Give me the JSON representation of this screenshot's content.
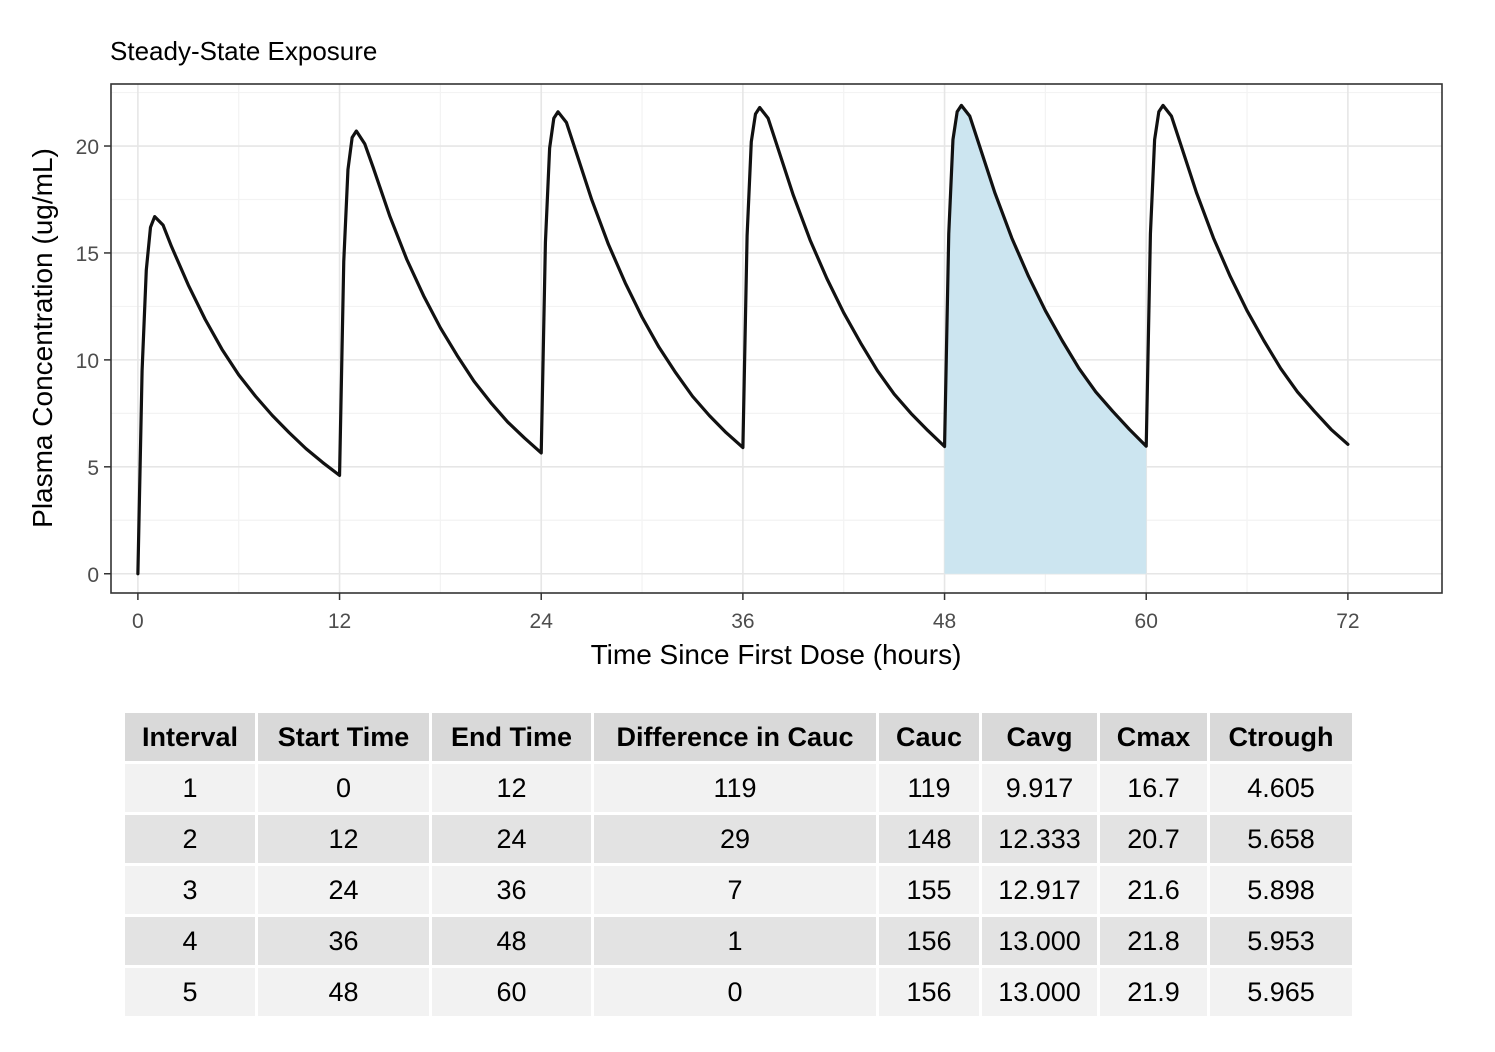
{
  "chart_data": {
    "type": "line",
    "title": "Steady-State Exposure",
    "xlabel": "Time Since First Dose (hours)",
    "ylabel": "Plasma Concentration (ug/mL)",
    "xlim": [
      -1.6,
      77.6
    ],
    "ylim": [
      -0.9,
      22.9
    ],
    "x_ticks": [
      0,
      12,
      24,
      36,
      48,
      60,
      72
    ],
    "y_ticks": [
      0,
      5,
      10,
      15,
      20
    ],
    "grid": true,
    "line_color": "#111111",
    "shaded_interval": {
      "x_start": 48,
      "x_end": 60,
      "color": "#cce5f0"
    },
    "series": [
      {
        "x": [
          0,
          0.25,
          0.5,
          0.75,
          1,
          1.5,
          2,
          3,
          4,
          5,
          6,
          7,
          8,
          9,
          10,
          11,
          12,
          12.25,
          12.5,
          12.75,
          13,
          13.5,
          14,
          15,
          16,
          17,
          18,
          19,
          20,
          21,
          22,
          23,
          24,
          24.25,
          24.5,
          24.75,
          25,
          25.5,
          26,
          27,
          28,
          29,
          30,
          31,
          32,
          33,
          34,
          35,
          36,
          36.25,
          36.5,
          36.75,
          37,
          37.5,
          38,
          39,
          40,
          41,
          42,
          43,
          44,
          45,
          46,
          47,
          48,
          48.25,
          48.5,
          48.75,
          49,
          49.5,
          50,
          51,
          52,
          53,
          54,
          55,
          56,
          57,
          58,
          59,
          60,
          60.25,
          60.5,
          60.75,
          61,
          61.5,
          62,
          63,
          64,
          65,
          66,
          67,
          68,
          69,
          70,
          71,
          72
        ],
        "y": [
          0,
          9.5,
          14.2,
          16.2,
          16.7,
          16.3,
          15.3,
          13.5,
          11.9,
          10.5,
          9.3,
          8.3,
          7.4,
          6.6,
          5.85,
          5.2,
          4.6,
          14.6,
          18.9,
          20.4,
          20.7,
          20.1,
          19.0,
          16.7,
          14.7,
          13.0,
          11.5,
          10.2,
          9.0,
          8.0,
          7.1,
          6.35,
          5.65,
          15.5,
          19.9,
          21.3,
          21.6,
          21.1,
          19.9,
          17.5,
          15.4,
          13.6,
          12.0,
          10.6,
          9.4,
          8.3,
          7.4,
          6.6,
          5.9,
          15.8,
          20.2,
          21.5,
          21.8,
          21.3,
          20.1,
          17.7,
          15.6,
          13.8,
          12.2,
          10.8,
          9.5,
          8.4,
          7.5,
          6.7,
          5.95,
          15.9,
          20.3,
          21.6,
          21.9,
          21.4,
          20.2,
          17.8,
          15.7,
          13.9,
          12.3,
          10.9,
          9.6,
          8.5,
          7.6,
          6.75,
          5.965,
          15.9,
          20.3,
          21.6,
          21.9,
          21.4,
          20.2,
          17.8,
          15.7,
          13.9,
          12.3,
          10.9,
          9.6,
          8.5,
          7.6,
          6.75,
          6.05
        ]
      }
    ]
  },
  "table": {
    "headers": [
      "Interval",
      "Start Time",
      "End Time",
      "Difference in Cauc",
      "Cauc",
      "Cavg",
      "Cmax",
      "Ctrough"
    ],
    "rows": [
      [
        "1",
        "0",
        "12",
        "119",
        "119",
        "9.917",
        "16.7",
        "4.605"
      ],
      [
        "2",
        "12",
        "24",
        "29",
        "148",
        "12.333",
        "20.7",
        "5.658"
      ],
      [
        "3",
        "24",
        "36",
        "7",
        "155",
        "12.917",
        "21.6",
        "5.898"
      ],
      [
        "4",
        "36",
        "48",
        "1",
        "156",
        "13.000",
        "21.8",
        "5.953"
      ],
      [
        "5",
        "48",
        "60",
        "0",
        "156",
        "13.000",
        "21.9",
        "5.965"
      ]
    ]
  }
}
